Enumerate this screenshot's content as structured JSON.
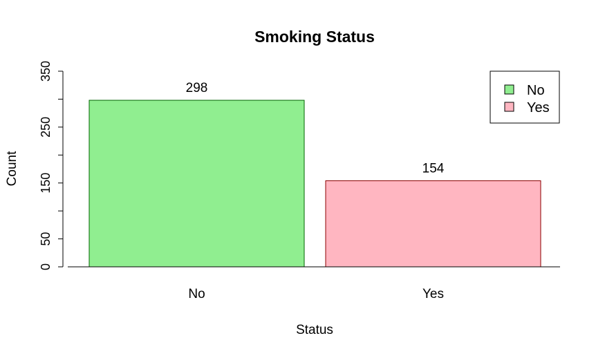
{
  "chart_data": {
    "type": "bar",
    "title": "Smoking Status",
    "xlabel": "Status",
    "ylabel": "Count",
    "categories": [
      "No",
      "Yes"
    ],
    "values": [
      298,
      154
    ],
    "data_labels": [
      "298",
      "154"
    ],
    "colors": [
      "#90ee90",
      "#ffb6c1"
    ],
    "border_colors": [
      "#006400",
      "#8b0000"
    ],
    "ylim": [
      0,
      350
    ],
    "y_ticks": [
      0,
      50,
      100,
      150,
      200,
      250,
      300,
      350
    ],
    "y_tick_labels": [
      "0",
      "50",
      "",
      "150",
      "",
      "250",
      "",
      "350"
    ],
    "grid": false,
    "legend": {
      "position": "top-right",
      "entries": [
        {
          "label": "No",
          "color": "#90ee90"
        },
        {
          "label": "Yes",
          "color": "#ffb6c1"
        }
      ]
    }
  }
}
